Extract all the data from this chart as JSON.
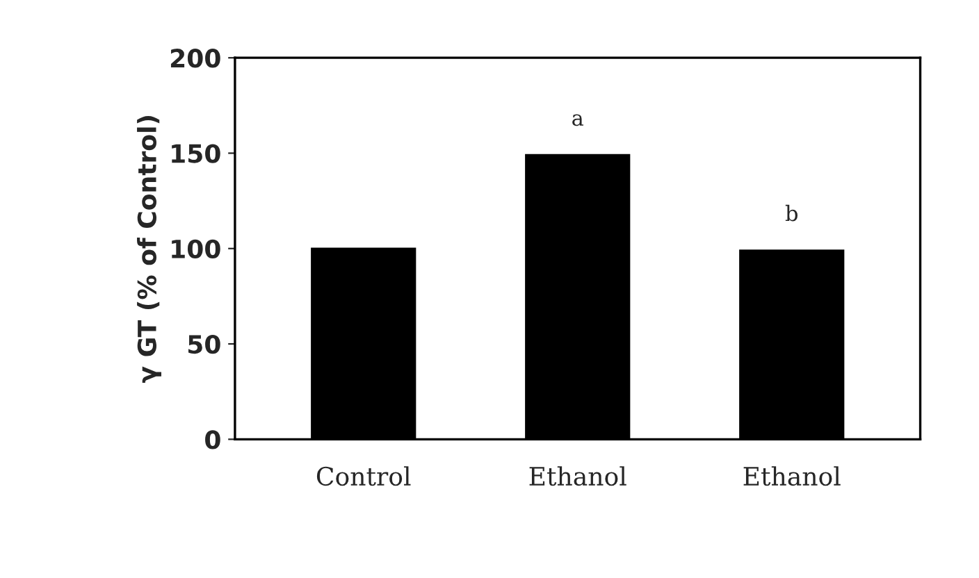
{
  "chart_data": {
    "type": "bar",
    "ylabel": "γ GT (% of Control)",
    "categories": [
      "Control",
      "Ethanol",
      "Ethanol"
    ],
    "values": [
      101,
      150,
      100
    ],
    "color": "#000000",
    "ylim": [
      0,
      200
    ],
    "yticks": [
      0,
      50,
      100,
      150,
      200
    ],
    "grid": false,
    "annotations": [
      "a",
      "b"
    ]
  }
}
